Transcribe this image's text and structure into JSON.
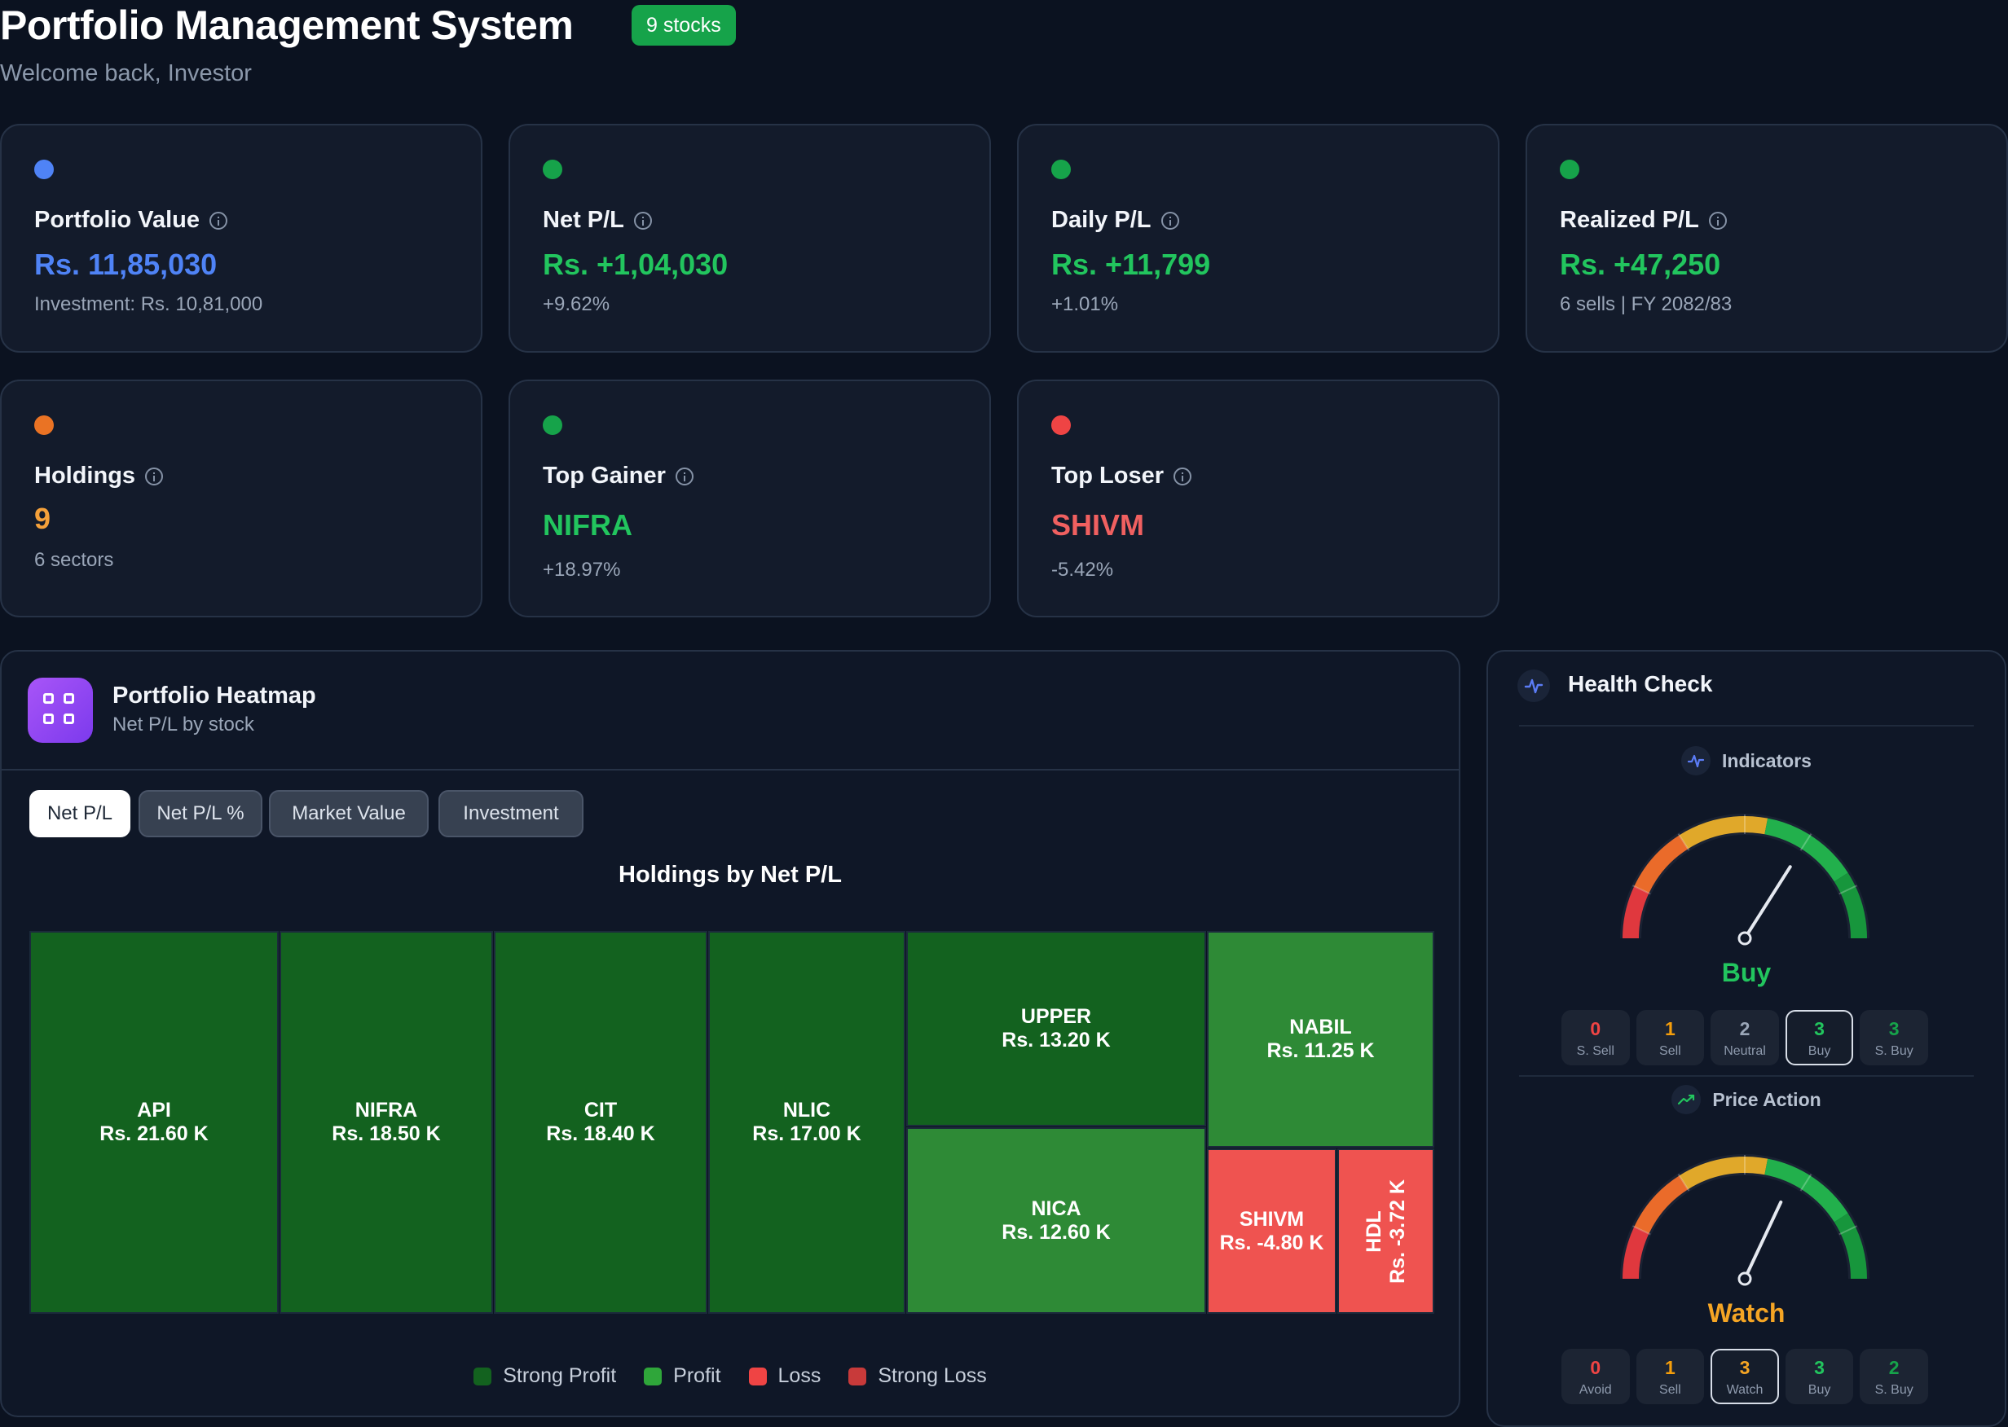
{
  "header": {
    "title": "Portfolio Management System",
    "badge": "9 stocks",
    "subtitle": "Welcome back, Investor"
  },
  "colors": {
    "blue": "#4f83f6",
    "green": "#22c55e",
    "orange": "#f5a13a",
    "red": "#f06060",
    "tile_strong_profit": "#13621f",
    "tile_profit": "#2e8a36",
    "tile_loss": "#ef5350"
  },
  "cards": [
    {
      "label": "Portfolio Value",
      "value": "Rs. 11,85,030",
      "sub": "Investment: Rs. 10,81,000",
      "dot_color": "#4f83f6",
      "value_color": "#4f83f6",
      "icon": "info-icon"
    },
    {
      "label": "Net P/L",
      "value": "Rs. +1,04,030",
      "sub": "+9.62%",
      "dot_color": "#16a34a",
      "value_color": "#22c55e",
      "icon": "info-icon"
    },
    {
      "label": "Daily P/L",
      "value": "Rs. +11,799",
      "sub": "+1.01%",
      "dot_color": "#16a34a",
      "value_color": "#22c55e",
      "icon": "info-icon"
    },
    {
      "label": "Realized P/L",
      "value": "Rs. +47,250",
      "sub": "6 sells | FY 2082/83",
      "dot_color": "#16a34a",
      "value_color": "#22c55e",
      "icon": "info-icon"
    },
    {
      "label": "Holdings",
      "value": "9",
      "sub": "6 sectors",
      "dot_color": "#ea7324",
      "value_color": "#f5a13a",
      "icon": "info-icon"
    },
    {
      "label": "Top Gainer",
      "value": "NIFRA",
      "sub": "+18.97%",
      "dot_color": "#16a34a",
      "value_color": "#22c55e",
      "icon": "info-icon"
    },
    {
      "label": "Top Loser",
      "value": "SHIVM",
      "sub": "-5.42%",
      "dot_color": "#ef4444",
      "value_color": "#f06060",
      "icon": "info-icon"
    }
  ],
  "heatmap": {
    "title": "Portfolio Heatmap",
    "subtitle": "Net P/L by stock",
    "tabs": [
      "Net P/L",
      "Net P/L %",
      "Market Value",
      "Investment"
    ],
    "active_tab": "Net P/L",
    "chart_title": "Holdings by Net P/L",
    "tiles": [
      {
        "name": "API",
        "value": "Rs. 21.60 K",
        "category": "Strong Profit"
      },
      {
        "name": "NIFRA",
        "value": "Rs. 18.50 K",
        "category": "Strong Profit"
      },
      {
        "name": "CIT",
        "value": "Rs. 18.40 K",
        "category": "Strong Profit"
      },
      {
        "name": "NLIC",
        "value": "Rs. 17.00 K",
        "category": "Strong Profit"
      },
      {
        "name": "UPPER",
        "value": "Rs. 13.20 K",
        "category": "Strong Profit"
      },
      {
        "name": "NABIL",
        "value": "Rs. 11.25 K",
        "category": "Profit"
      },
      {
        "name": "NICA",
        "value": "Rs. 12.60 K",
        "category": "Profit"
      },
      {
        "name": "SHIVM",
        "value": "Rs. -4.80 K",
        "category": "Loss"
      },
      {
        "name": "HDL",
        "value": "Rs. -3.72 K",
        "category": "Loss"
      }
    ],
    "legend": [
      {
        "label": "Strong Profit",
        "color": "#13621f"
      },
      {
        "label": "Profit",
        "color": "#2fa63a"
      },
      {
        "label": "Loss",
        "color": "#ef4444"
      },
      {
        "label": "Strong Loss",
        "color": "#c83a3a"
      }
    ]
  },
  "health_check": {
    "title": "Health Check",
    "indicators": {
      "label": "Indicators",
      "verdict": "Buy",
      "verdict_color": "#22c55e",
      "needle_level": 0.68,
      "counts": [
        {
          "num": "0",
          "label": "S. Sell",
          "color": "#ef4444"
        },
        {
          "num": "1",
          "label": "Sell",
          "color": "#f59e0b"
        },
        {
          "num": "2",
          "label": "Neutral",
          "color": "#9aa6b8"
        },
        {
          "num": "3",
          "label": "Buy",
          "color": "#22c55e"
        },
        {
          "num": "3",
          "label": "S. Buy",
          "color": "#16a34a"
        }
      ],
      "selected": 3
    },
    "price_action": {
      "label": "Price Action",
      "verdict": "Watch",
      "verdict_color": "#f5a524",
      "needle_level": 0.64,
      "counts": [
        {
          "num": "0",
          "label": "Avoid",
          "color": "#ef4444"
        },
        {
          "num": "1",
          "label": "Sell",
          "color": "#f59e0b"
        },
        {
          "num": "3",
          "label": "Watch",
          "color": "#f5a524"
        },
        {
          "num": "3",
          "label": "Buy",
          "color": "#22c55e"
        },
        {
          "num": "2",
          "label": "S. Buy",
          "color": "#16a34a"
        }
      ],
      "selected": 2
    }
  }
}
